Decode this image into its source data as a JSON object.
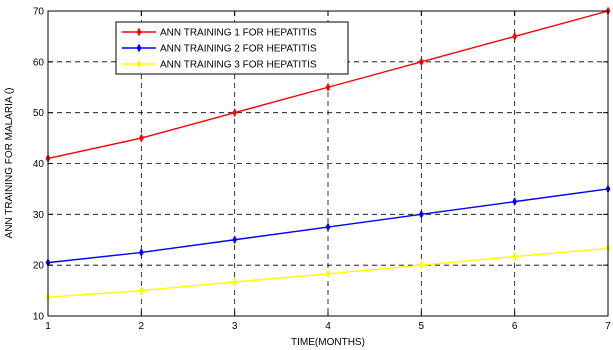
{
  "chart_data": {
    "type": "line",
    "title": "",
    "xlabel": "TIME(MONTHS)",
    "ylabel": "ANN TRAINING FOR MALARIA ()",
    "x": [
      1,
      2,
      3,
      4,
      5,
      6,
      7
    ],
    "xlim": [
      1,
      7
    ],
    "ylim": [
      10,
      70
    ],
    "xticks": [
      1,
      2,
      3,
      4,
      5,
      6,
      7
    ],
    "yticks": [
      10,
      20,
      30,
      40,
      50,
      60,
      70
    ],
    "grid": true,
    "legend_position": "top-left",
    "series": [
      {
        "name": "ANN TRAINING 1 FOR HEPATITIS",
        "color": "#ff0000",
        "values": [
          41,
          45,
          50,
          55,
          60,
          65,
          70
        ]
      },
      {
        "name": "ANN TRAINING 2 FOR HEPATITIS",
        "color": "#0000ff",
        "values": [
          20.5,
          22.5,
          25,
          27.5,
          30,
          32.5,
          35
        ]
      },
      {
        "name": "ANN TRAINING 3 FOR HEPATITIS",
        "color": "#ffff00",
        "values": [
          13.7,
          15,
          16.7,
          18.3,
          20,
          21.7,
          23.3
        ]
      }
    ]
  }
}
